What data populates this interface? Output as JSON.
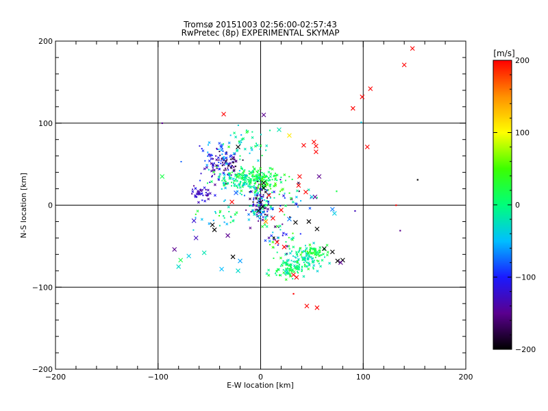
{
  "chart_data": {
    "type": "scatter",
    "title": "Tromsø 20151003 02:56:00-02:57:43",
    "subtitle": "RwPretec (8p) EXPERIMENTAL SKYMAP",
    "xlabel": "E-W location [km]",
    "ylabel": "N-S location [km]",
    "xlim": [
      -200,
      200
    ],
    "ylim": [
      -200,
      200
    ],
    "x_ticks": [
      -200,
      -100,
      0,
      100,
      200
    ],
    "y_ticks": [
      -200,
      -100,
      0,
      100,
      200
    ],
    "x_tick_labels": [
      "−200",
      "−100",
      "0",
      "100",
      "200"
    ],
    "y_tick_labels": [
      "−200",
      "−100",
      "0",
      "100",
      "200"
    ],
    "grid": true,
    "colorbar": {
      "label": "[m/s]",
      "min": -200,
      "max": 200,
      "ticks": [
        200,
        100,
        0,
        -100,
        -200
      ],
      "tick_labels": [
        "200",
        "100",
        "0",
        "−100",
        "−200"
      ],
      "colors": [
        "#000000",
        "#5a008f",
        "#1a1aff",
        "#00bfff",
        "#00ff7a",
        "#3cff00",
        "#ffff00",
        "#ff9000",
        "#ff0000"
      ]
    },
    "markers": {
      "cross": [
        {
          "x": 148,
          "y": 191,
          "v": 200
        },
        {
          "x": 140,
          "y": 171,
          "v": 200
        },
        {
          "x": 107,
          "y": 142,
          "v": 200
        },
        {
          "x": 99,
          "y": 132,
          "v": 200
        },
        {
          "x": 90,
          "y": 118,
          "v": 200
        },
        {
          "x": 104,
          "y": 71,
          "v": 200
        },
        {
          "x": -36,
          "y": 111,
          "v": 200
        },
        {
          "x": 3,
          "y": 110,
          "v": -150
        },
        {
          "x": 52,
          "y": 77,
          "v": 200
        },
        {
          "x": 54,
          "y": 72,
          "v": 200
        },
        {
          "x": 42,
          "y": 73,
          "v": 200
        },
        {
          "x": 54,
          "y": 65,
          "v": 200
        },
        {
          "x": 28,
          "y": 85,
          "v": 110
        },
        {
          "x": -22,
          "y": 71,
          "v": -200
        },
        {
          "x": 18,
          "y": 92,
          "v": -20
        },
        {
          "x": 38,
          "y": 35,
          "v": 200
        },
        {
          "x": 57,
          "y": 35,
          "v": -150
        },
        {
          "x": 37,
          "y": 24,
          "v": 200
        },
        {
          "x": 44,
          "y": 16,
          "v": 200
        },
        {
          "x": 50,
          "y": 10,
          "v": -40
        },
        {
          "x": 53,
          "y": 10,
          "v": -150
        },
        {
          "x": -96,
          "y": 35,
          "v": 20
        },
        {
          "x": -28,
          "y": 4,
          "v": 200
        },
        {
          "x": 8,
          "y": 12,
          "v": 200
        },
        {
          "x": 3,
          "y": 27,
          "v": -200
        },
        {
          "x": 3,
          "y": 21,
          "v": -200
        },
        {
          "x": -24,
          "y": 15,
          "v": -80
        },
        {
          "x": 20,
          "y": -6,
          "v": 200
        },
        {
          "x": 28,
          "y": -17,
          "v": -70
        },
        {
          "x": 34,
          "y": -21,
          "v": -200
        },
        {
          "x": 47,
          "y": -20,
          "v": -200
        },
        {
          "x": 55,
          "y": -29,
          "v": -200
        },
        {
          "x": 70,
          "y": -5,
          "v": -70
        },
        {
          "x": -65,
          "y": -19,
          "v": -120
        },
        {
          "x": -47,
          "y": -24,
          "v": -200
        },
        {
          "x": -45,
          "y": -30,
          "v": -200
        },
        {
          "x": -32,
          "y": -37,
          "v": -150
        },
        {
          "x": -63,
          "y": -40,
          "v": -130
        },
        {
          "x": -84,
          "y": -54,
          "v": -150
        },
        {
          "x": -27,
          "y": -63,
          "v": -200
        },
        {
          "x": -20,
          "y": -68,
          "v": -60
        },
        {
          "x": -55,
          "y": -58,
          "v": -20
        },
        {
          "x": -70,
          "y": -62,
          "v": -40
        },
        {
          "x": -78,
          "y": -67,
          "v": 20
        },
        {
          "x": -80,
          "y": -75,
          "v": -30
        },
        {
          "x": -38,
          "y": -78,
          "v": -50
        },
        {
          "x": -22,
          "y": -80,
          "v": -30
        },
        {
          "x": 16,
          "y": -45,
          "v": 200
        },
        {
          "x": 23,
          "y": -51,
          "v": 200
        },
        {
          "x": 62,
          "y": -53,
          "v": -200
        },
        {
          "x": 70,
          "y": -57,
          "v": -200
        },
        {
          "x": 75,
          "y": -68,
          "v": -200
        },
        {
          "x": 80,
          "y": -67,
          "v": -200
        },
        {
          "x": 78,
          "y": -70,
          "v": -150
        },
        {
          "x": 45,
          "y": -123,
          "v": 200
        },
        {
          "x": 55,
          "y": -125,
          "v": 200
        },
        {
          "x": 32,
          "y": -85,
          "v": 200
        },
        {
          "x": 35,
          "y": -88,
          "v": 200
        },
        {
          "x": 25,
          "y": -82,
          "v": -30
        },
        {
          "x": 12,
          "y": -16,
          "v": 200
        },
        {
          "x": -2,
          "y": -7,
          "v": -200
        },
        {
          "x": 2,
          "y": -2,
          "v": -200
        },
        {
          "x": 5,
          "y": -20,
          "v": 150
        },
        {
          "x": 72,
          "y": -10,
          "v": -40
        }
      ],
      "dot": [
        {
          "x": -96,
          "y": 100,
          "v": -150
        },
        {
          "x": 98,
          "y": 101,
          "v": -40
        },
        {
          "x": 153,
          "y": 31,
          "v": -200
        },
        {
          "x": 132,
          "y": 0,
          "v": 200
        },
        {
          "x": 136,
          "y": -31,
          "v": -150
        },
        {
          "x": 32,
          "y": -108,
          "v": 200
        },
        {
          "x": 92,
          "y": -7,
          "v": -130
        },
        {
          "x": 74,
          "y": 17,
          "v": 20
        }
      ]
    },
    "clusters": [
      {
        "cx": -40,
        "cy": 45,
        "sx": 9,
        "sy": 9,
        "n": 60,
        "vmin": -180,
        "vmax": -90
      },
      {
        "cx": -28,
        "cy": 52,
        "sx": 6,
        "sy": 5,
        "n": 30,
        "vmin": -200,
        "vmax": -140
      },
      {
        "cx": -58,
        "cy": 15,
        "sx": 6,
        "sy": 5,
        "n": 40,
        "vmin": -150,
        "vmax": -100
      },
      {
        "cx": -45,
        "cy": 62,
        "sx": 10,
        "sy": 8,
        "n": 40,
        "vmin": -120,
        "vmax": -40
      },
      {
        "cx": -10,
        "cy": 35,
        "sx": 14,
        "sy": 5,
        "n": 170,
        "vmin": -10,
        "vmax": 40
      },
      {
        "cx": -25,
        "cy": 28,
        "sx": 10,
        "sy": 6,
        "n": 50,
        "vmin": -60,
        "vmax": 20
      },
      {
        "cx": -2,
        "cy": 10,
        "sx": 6,
        "sy": 10,
        "n": 70,
        "vmin": -200,
        "vmax": 10
      },
      {
        "cx": 2,
        "cy": -5,
        "sx": 5,
        "sy": 8,
        "n": 60,
        "vmin": -200,
        "vmax": 40
      },
      {
        "cx": 6,
        "cy": 25,
        "sx": 9,
        "sy": 7,
        "n": 40,
        "vmin": -10,
        "vmax": 60
      },
      {
        "cx": 40,
        "cy": -65,
        "sx": 10,
        "sy": 8,
        "n": 90,
        "vmin": -40,
        "vmax": 0
      },
      {
        "cx": 55,
        "cy": -58,
        "sx": 6,
        "sy": 4,
        "n": 50,
        "vmin": 0,
        "vmax": 50
      },
      {
        "cx": 28,
        "cy": -78,
        "sx": 9,
        "sy": 6,
        "n": 80,
        "vmin": -20,
        "vmax": 40
      },
      {
        "cx": 20,
        "cy": -38,
        "sx": 10,
        "sy": 8,
        "n": 40,
        "vmin": -200,
        "vmax": 60
      },
      {
        "cx": -40,
        "cy": -15,
        "sx": 10,
        "sy": 10,
        "n": 30,
        "vmin": -60,
        "vmax": 40
      },
      {
        "cx": -15,
        "cy": 75,
        "sx": 12,
        "sy": 8,
        "n": 40,
        "vmin": -60,
        "vmax": 40
      },
      {
        "cx": 30,
        "cy": 10,
        "sx": 12,
        "sy": 10,
        "n": 30,
        "vmin": -200,
        "vmax": 60
      }
    ]
  }
}
